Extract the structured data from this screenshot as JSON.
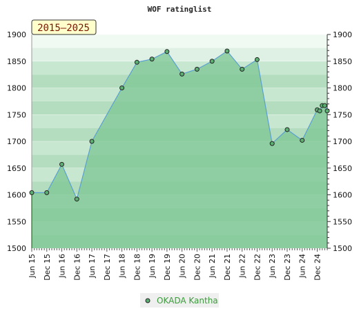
{
  "chart_data": {
    "type": "area",
    "title": "WOF ratinglist",
    "period_badge": "2015–2025",
    "xlabel": "",
    "ylabel": "",
    "ylim": [
      1500,
      1900
    ],
    "y_ticks": [
      1500,
      1550,
      1600,
      1650,
      1700,
      1750,
      1800,
      1850,
      1900
    ],
    "x_ticks": [
      "Jun 15",
      "Dec 15",
      "Jun 16",
      "Dec 16",
      "Jun 17",
      "Dec 17",
      "Jun 18",
      "Dec 18",
      "Jun 19",
      "Dec 19",
      "Jun 20",
      "Dec 20",
      "Jun 21",
      "Dec 21",
      "Jun 22",
      "Dec 22",
      "Jun 23",
      "Dec 23",
      "Jun 24",
      "Dec 24"
    ],
    "grid": true,
    "legend_position": "bottom-center",
    "series": [
      {
        "name": "OKADA Kantha",
        "x": [
          "2015-06",
          "2015-12",
          "2016-06",
          "2016-12",
          "2017-06",
          "2018-06",
          "2018-12",
          "2019-06",
          "2019-12",
          "2020-06",
          "2020-12",
          "2021-06",
          "2021-12",
          "2022-06",
          "2022-12",
          "2023-06",
          "2023-12",
          "2024-06",
          "2024-12",
          "2025-01",
          "2025-02",
          "2025-03",
          "2025-04"
        ],
        "values": [
          1604,
          1604,
          1657,
          1592,
          1700,
          1800,
          1848,
          1854,
          1868,
          1826,
          1835,
          1850,
          1869,
          1835,
          1853,
          1696,
          1722,
          1702,
          1759,
          1757,
          1767,
          1767,
          1757
        ]
      }
    ]
  },
  "colors": {
    "fill": "#7cc593",
    "line": "#5a9fd0",
    "marker": "#5cae72",
    "bands": [
      "#b4ddbf",
      "#c8e7d0",
      "#dff1e4",
      "#f1f9f3"
    ],
    "badge_bg": "#ffffcc",
    "legend_bg": "#efefef"
  }
}
